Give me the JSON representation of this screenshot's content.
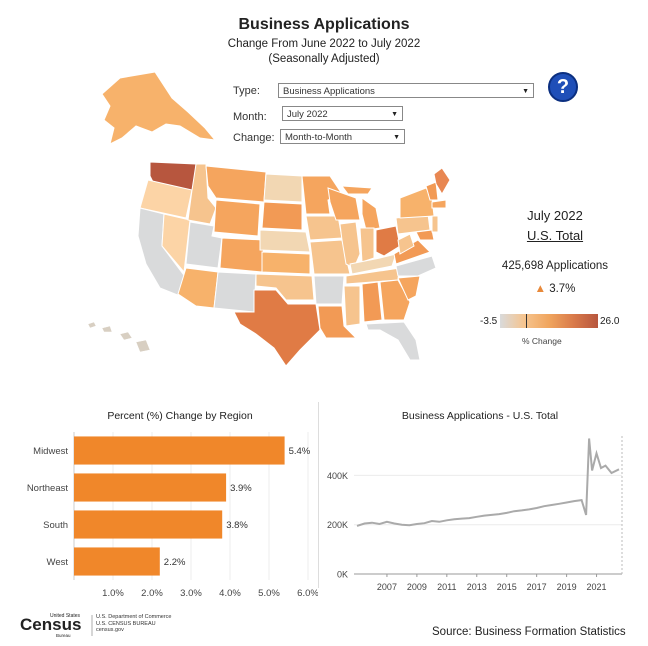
{
  "header": {
    "title": "Business Applications",
    "subtitle_line1": "Change From June 2022 to July 2022",
    "subtitle_line2": "(Seasonally Adjusted)"
  },
  "filters": {
    "type_label": "Type:",
    "type_value": "Business Applications",
    "month_label": "Month:",
    "month_value": "July 2022",
    "change_label": "Change:",
    "change_value": "Month-to-Month"
  },
  "help": {
    "icon": "question-mark-icon",
    "symbol": "?"
  },
  "summary": {
    "month": "July 2022",
    "scope": "U.S. Total",
    "applications": "425,698 Applications",
    "change_symbol": "▲",
    "change_value": "3.7%"
  },
  "legend": {
    "min": "-3.5",
    "max": "26.0",
    "label": "% Change",
    "colors": [
      "#d9dadb",
      "#f6c48e",
      "#f0a55e",
      "#d97a4a",
      "#b7563e"
    ]
  },
  "charts": {
    "bar_title": "Percent (%) Change by Region",
    "line_title": "Business Applications - U.S. Total"
  },
  "chart_data": [
    {
      "type": "bar",
      "orientation": "horizontal",
      "title": "Percent (%) Change by Region",
      "categories": [
        "Midwest",
        "Northeast",
        "South",
        "West"
      ],
      "values": [
        5.4,
        3.9,
        3.8,
        2.2
      ],
      "value_labels": [
        "5.4%",
        "3.9%",
        "3.8%",
        "2.2%"
      ],
      "xlim": [
        0,
        6.0
      ],
      "xticks": [
        1.0,
        2.0,
        3.0,
        4.0,
        5.0,
        6.0
      ],
      "xtick_labels": [
        "1.0%",
        "2.0%",
        "3.0%",
        "4.0%",
        "5.0%",
        "6.0%"
      ],
      "color": "#f0872a"
    },
    {
      "type": "line",
      "title": "Business Applications - U.S. Total",
      "x": [
        2005,
        2005.5,
        2006,
        2006.5,
        2007,
        2007.5,
        2008,
        2008.5,
        2009,
        2009.5,
        2010,
        2010.5,
        2011,
        2011.5,
        2012,
        2012.5,
        2013,
        2013.5,
        2014,
        2014.5,
        2015,
        2015.5,
        2016,
        2016.5,
        2017,
        2017.5,
        2018,
        2018.5,
        2019,
        2019.5,
        2020,
        2020.3,
        2020.5,
        2020.7,
        2021,
        2021.3,
        2021.6,
        2022,
        2022.5
      ],
      "y": [
        195000,
        205000,
        208000,
        203000,
        212000,
        205000,
        200000,
        198000,
        203000,
        206000,
        215000,
        212000,
        218000,
        222000,
        225000,
        227000,
        232000,
        237000,
        240000,
        243000,
        248000,
        255000,
        258000,
        262000,
        268000,
        275000,
        280000,
        285000,
        290000,
        296000,
        300000,
        240000,
        550000,
        420000,
        490000,
        430000,
        440000,
        410000,
        425000
      ],
      "ylim": [
        0,
        560000
      ],
      "yticks": [
        0,
        200000,
        400000
      ],
      "ytick_labels": [
        "0K",
        "200K",
        "400K"
      ],
      "xticks": [
        2007,
        2009,
        2011,
        2013,
        2015,
        2017,
        2019,
        2021
      ],
      "xtick_labels": [
        "2007",
        "2009",
        "2011",
        "2013",
        "2015",
        "2017",
        "2019",
        "2021"
      ],
      "xlim": [
        2004.8,
        2022.7
      ],
      "color": "#aaaaaa"
    }
  ],
  "map": {
    "alt": "Choropleth map of U.S. states showing percent change"
  },
  "footer": {
    "source": "Source: Business Formation Statistics",
    "logo_text": "United States Census Bureau",
    "dept_line1": "U.S. Department of Commerce",
    "dept_line2": "U.S. CENSUS BUREAU",
    "dept_line3": "census.gov"
  }
}
